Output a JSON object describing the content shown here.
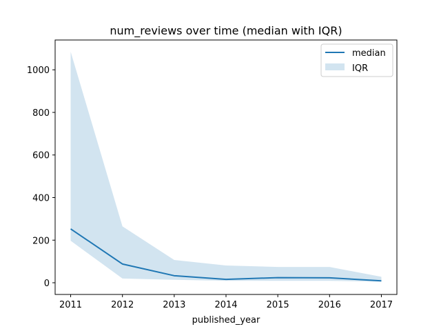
{
  "chart_data": {
    "type": "line",
    "title": "num_reviews over time (median with IQR)",
    "xlabel": "published_year",
    "ylabel": "",
    "x": [
      2011,
      2012,
      2013,
      2014,
      2015,
      2016,
      2017
    ],
    "x_ticks": [
      "2011",
      "2012",
      "2013",
      "2014",
      "2015",
      "2016",
      "2017"
    ],
    "y_ticks": [
      0,
      200,
      400,
      600,
      800,
      1000
    ],
    "xlim": [
      2010.7,
      2017.3
    ],
    "ylim": [
      -55,
      1140
    ],
    "grid": false,
    "legend_position": "upper right",
    "series": [
      {
        "name": "median",
        "kind": "line",
        "color": "#1f77b4",
        "values": [
          253,
          88,
          33,
          16,
          24,
          23,
          9
        ]
      },
      {
        "name": "IQR",
        "kind": "band",
        "color": "#1f77b4",
        "opacity": 0.2,
        "lower": [
          197,
          20,
          14,
          9,
          9,
          9,
          5
        ],
        "upper": [
          1085,
          265,
          107,
          81,
          74,
          74,
          28
        ]
      }
    ]
  }
}
